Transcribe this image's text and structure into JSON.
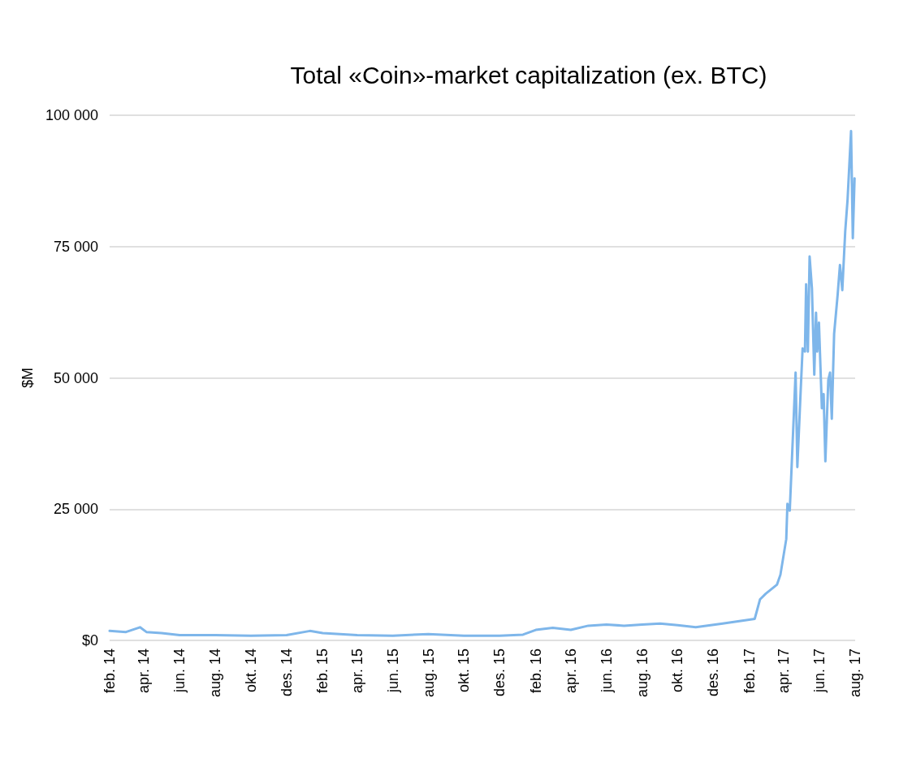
{
  "chart_data": {
    "type": "line",
    "title": "Total «Coin»-market capitalization (ex. BTC)",
    "ylabel": "$M",
    "xlim": [
      "2014-02-01",
      "2017-08-01"
    ],
    "xticks": [
      {
        "value": "2014-02-01",
        "label": "feb. 14"
      },
      {
        "value": "2014-04-01",
        "label": "apr. 14"
      },
      {
        "value": "2014-06-01",
        "label": "jun. 14"
      },
      {
        "value": "2014-08-01",
        "label": "aug. 14"
      },
      {
        "value": "2014-10-01",
        "label": "okt. 14"
      },
      {
        "value": "2014-12-01",
        "label": "des. 14"
      },
      {
        "value": "2015-02-01",
        "label": "feb. 15"
      },
      {
        "value": "2015-04-01",
        "label": "apr. 15"
      },
      {
        "value": "2015-06-01",
        "label": "jun. 15"
      },
      {
        "value": "2015-08-01",
        "label": "aug. 15"
      },
      {
        "value": "2015-10-01",
        "label": "okt. 15"
      },
      {
        "value": "2015-12-01",
        "label": "des. 15"
      },
      {
        "value": "2016-02-01",
        "label": "feb. 16"
      },
      {
        "value": "2016-04-01",
        "label": "apr. 16"
      },
      {
        "value": "2016-06-01",
        "label": "jun. 16"
      },
      {
        "value": "2016-08-01",
        "label": "aug. 16"
      },
      {
        "value": "2016-10-01",
        "label": "okt. 16"
      },
      {
        "value": "2016-12-01",
        "label": "des. 16"
      },
      {
        "value": "2017-02-01",
        "label": "feb. 17"
      },
      {
        "value": "2017-04-01",
        "label": "apr. 17"
      },
      {
        "value": "2017-06-01",
        "label": "jun. 17"
      },
      {
        "value": "2017-08-01",
        "label": "aug. 17"
      }
    ],
    "ylim": [
      0,
      100000
    ],
    "yticks": [
      {
        "value": 0,
        "label": "$0"
      },
      {
        "value": 25000,
        "label": "25 000"
      },
      {
        "value": 50000,
        "label": "50 000"
      },
      {
        "value": 75000,
        "label": "75 000"
      },
      {
        "value": 100000,
        "label": "100 000"
      }
    ],
    "grid": "y",
    "marker": "none",
    "line_style": "solid",
    "x": [
      "2014-02-01",
      "2014-03-01",
      "2014-03-25",
      "2014-04-05",
      "2014-05-01",
      "2014-06-01",
      "2014-08-01",
      "2014-10-01",
      "2014-12-01",
      "2015-01-10",
      "2015-02-01",
      "2015-04-01",
      "2015-06-01",
      "2015-08-01",
      "2015-10-01",
      "2015-12-01",
      "2016-01-10",
      "2016-02-01",
      "2016-03-01",
      "2016-04-01",
      "2016-05-01",
      "2016-06-01",
      "2016-07-01",
      "2016-08-01",
      "2016-09-01",
      "2016-10-01",
      "2016-11-01",
      "2016-12-17",
      "2017-02-10",
      "2017-02-19",
      "2017-03-01",
      "2017-03-20",
      "2017-03-26",
      "2017-04-05",
      "2017-04-07",
      "2017-04-11",
      "2017-04-21",
      "2017-04-24",
      "2017-04-30",
      "2017-05-03",
      "2017-05-07",
      "2017-05-09",
      "2017-05-12",
      "2017-05-15",
      "2017-05-19",
      "2017-05-23",
      "2017-05-26",
      "2017-05-28",
      "2017-05-31",
      "2017-06-05",
      "2017-06-08",
      "2017-06-11",
      "2017-06-16",
      "2017-06-19",
      "2017-06-22",
      "2017-06-26",
      "2017-07-02",
      "2017-07-06",
      "2017-07-10",
      "2017-07-15",
      "2017-07-19",
      "2017-07-25",
      "2017-07-28",
      "2017-07-31"
    ],
    "series": [
      {
        "color": "#7eb6ea",
        "values": [
          1800,
          1600,
          2500,
          1600,
          1400,
          1000,
          1000,
          900,
          1000,
          1800,
          1400,
          1000,
          900,
          1200,
          900,
          900,
          1100,
          2000,
          2400,
          2000,
          2800,
          3000,
          2800,
          3000,
          3200,
          2900,
          2500,
          3200,
          4100,
          7800,
          8900,
          10600,
          12500,
          19300,
          26000,
          24700,
          51000,
          33000,
          48300,
          55600,
          55000,
          67800,
          55000,
          73100,
          67000,
          50600,
          62400,
          55000,
          60500,
          44200,
          46900,
          34100,
          49600,
          51000,
          42200,
          58400,
          65800,
          71500,
          66700,
          77900,
          83900,
          97000,
          76600,
          88000
        ]
      }
    ]
  }
}
